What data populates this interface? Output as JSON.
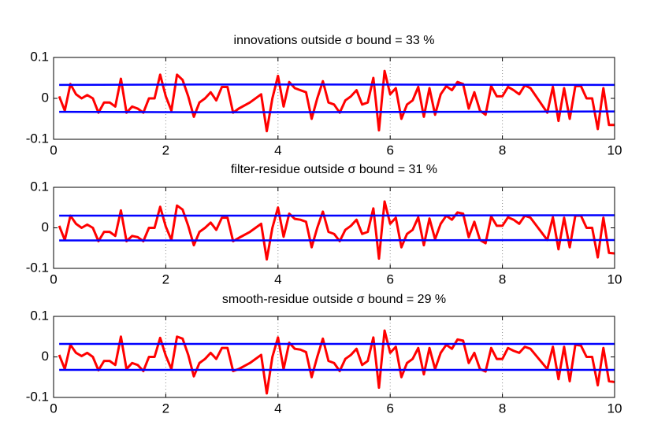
{
  "chart_data": [
    {
      "type": "line",
      "title": "innovations outside σ bound = 33 %",
      "x": [
        0.1,
        0.2,
        0.3,
        0.4,
        0.5,
        0.6,
        0.7,
        0.8,
        0.9,
        1.0,
        1.1,
        1.2,
        1.3,
        1.4,
        1.5,
        1.6,
        1.7,
        1.8,
        1.9,
        2.0,
        2.1,
        2.2,
        2.3,
        2.4,
        2.5,
        2.6,
        2.7,
        2.8,
        2.9,
        3.0,
        3.1,
        3.2,
        3.3,
        3.5,
        3.7,
        3.8,
        3.9,
        4.0,
        4.1,
        4.2,
        4.3,
        4.4,
        4.5,
        4.6,
        4.7,
        4.8,
        4.9,
        5.0,
        5.1,
        5.2,
        5.3,
        5.4,
        5.5,
        5.6,
        5.7,
        5.8,
        5.9,
        6.0,
        6.1,
        6.2,
        6.3,
        6.4,
        6.5,
        6.6,
        6.7,
        6.8,
        6.9,
        7.0,
        7.1,
        7.2,
        7.3,
        7.4,
        7.5,
        7.6,
        7.7,
        7.8,
        7.9,
        8.0,
        8.1,
        8.2,
        8.3,
        8.4,
        8.5,
        8.8,
        8.9,
        9.0,
        9.1,
        9.2,
        9.3,
        9.4,
        9.5,
        9.6,
        9.7,
        9.8,
        9.9,
        10.0
      ],
      "series": [
        {
          "color": "#ff0000",
          "values": [
            0.005,
            -0.03,
            0.035,
            0.01,
            0,
            0.008,
            0,
            -0.035,
            -0.01,
            -0.01,
            -0.02,
            0.048,
            -0.035,
            -0.02,
            -0.025,
            -0.035,
            0,
            0,
            0.058,
            0.005,
            -0.03,
            0.058,
            0.045,
            0.005,
            -0.045,
            -0.01,
            0,
            0.015,
            -0.005,
            0.028,
            0.028,
            -0.035,
            -0.025,
            -0.01,
            0.01,
            -0.08,
            0,
            0.055,
            -0.02,
            0.04,
            0.025,
            0.02,
            0.015,
            -0.05,
            0,
            0.042,
            -0.01,
            -0.015,
            -0.035,
            -0.005,
            0.005,
            0.02,
            -0.015,
            -0.01,
            0.05,
            -0.078,
            0.067,
            0.01,
            0.025,
            -0.05,
            -0.015,
            -0.005,
            0.028,
            -0.045,
            0.025,
            -0.04,
            0.01,
            0.03,
            0.02,
            0.04,
            0.035,
            -0.025,
            0.015,
            -0.03,
            -0.04,
            0.03,
            0.005,
            0.005,
            0.028,
            0.02,
            0.01,
            0.032,
            0.025,
            -0.035,
            0.028,
            -0.055,
            0.025,
            -0.05,
            0.03,
            0.03,
            0,
            0,
            -0.075,
            0.025,
            -0.065,
            -0.065
          ]
        },
        {
          "color": "#0000ff",
          "x": [
            0.1,
            3.0,
            10.0
          ],
          "values": [
            0.033,
            0.034,
            0.033
          ]
        },
        {
          "color": "#0000ff",
          "x": [
            0.1,
            3.0,
            10.0
          ],
          "values": [
            -0.033,
            -0.034,
            -0.032
          ]
        }
      ],
      "xlim": [
        0,
        10
      ],
      "xticks": [
        0,
        2,
        4,
        6,
        8,
        10
      ],
      "ylim": [
        -0.1,
        0.1
      ],
      "yticks": [
        -0.1,
        0,
        0.1
      ],
      "grid": "x"
    },
    {
      "type": "line",
      "title": "filter-residue outside σ bound = 31 %",
      "x": [
        0.1,
        0.2,
        0.3,
        0.4,
        0.5,
        0.6,
        0.7,
        0.8,
        0.9,
        1.0,
        1.1,
        1.2,
        1.3,
        1.4,
        1.5,
        1.6,
        1.7,
        1.8,
        1.9,
        2.0,
        2.1,
        2.2,
        2.3,
        2.4,
        2.5,
        2.6,
        2.7,
        2.8,
        2.9,
        3.0,
        3.1,
        3.2,
        3.3,
        3.5,
        3.7,
        3.8,
        3.9,
        4.0,
        4.1,
        4.2,
        4.3,
        4.4,
        4.5,
        4.6,
        4.7,
        4.8,
        4.9,
        5.0,
        5.1,
        5.2,
        5.3,
        5.4,
        5.5,
        5.6,
        5.7,
        5.8,
        5.9,
        6.0,
        6.1,
        6.2,
        6.3,
        6.4,
        6.5,
        6.6,
        6.7,
        6.8,
        6.9,
        7.0,
        7.1,
        7.2,
        7.3,
        7.4,
        7.5,
        7.6,
        7.7,
        7.8,
        7.9,
        8.0,
        8.1,
        8.2,
        8.3,
        8.4,
        8.5,
        8.8,
        8.9,
        9.0,
        9.1,
        9.2,
        9.3,
        9.4,
        9.5,
        9.6,
        9.7,
        9.8,
        9.9,
        10.0
      ],
      "series": [
        {
          "color": "#ff0000",
          "values": [
            0.005,
            -0.03,
            0.03,
            0.01,
            0,
            0.008,
            0,
            -0.033,
            -0.01,
            -0.01,
            -0.02,
            0.043,
            -0.033,
            -0.02,
            -0.023,
            -0.033,
            0,
            0,
            0.052,
            0.003,
            -0.03,
            0.055,
            0.045,
            0.005,
            -0.043,
            -0.01,
            0,
            0.013,
            -0.005,
            0.025,
            0.025,
            -0.033,
            -0.025,
            -0.01,
            0.01,
            -0.078,
            0,
            0.05,
            -0.022,
            0.035,
            0.022,
            0.02,
            0.015,
            -0.048,
            0,
            0.04,
            -0.01,
            -0.015,
            -0.033,
            -0.005,
            0.005,
            0.02,
            -0.015,
            -0.01,
            0.048,
            -0.076,
            0.065,
            0.01,
            0.025,
            -0.048,
            -0.015,
            -0.005,
            0.026,
            -0.043,
            0.023,
            -0.028,
            0.01,
            0.03,
            0.02,
            0.038,
            0.035,
            -0.023,
            0.015,
            -0.03,
            -0.038,
            0.028,
            0.005,
            0.005,
            0.026,
            0.02,
            0.01,
            0.03,
            0.025,
            -0.03,
            0.026,
            -0.053,
            0.025,
            -0.048,
            0.03,
            0.03,
            0,
            0,
            -0.073,
            0.025,
            -0.062,
            -0.063
          ]
        },
        {
          "color": "#0000ff",
          "x": [
            0.1,
            3.0,
            10.0
          ],
          "values": [
            0.03,
            0.03,
            0.031
          ]
        },
        {
          "color": "#0000ff",
          "x": [
            0.1,
            3.0,
            10.0
          ],
          "values": [
            -0.031,
            -0.031,
            -0.03
          ]
        }
      ],
      "xlim": [
        0,
        10
      ],
      "xticks": [
        0,
        2,
        4,
        6,
        8,
        10
      ],
      "ylim": [
        -0.1,
        0.1
      ],
      "yticks": [
        -0.1,
        0,
        0.1
      ],
      "grid": "x"
    },
    {
      "type": "line",
      "title": "smooth-residue outside σ bound = 29 %",
      "x": [
        0.1,
        0.2,
        0.3,
        0.4,
        0.5,
        0.6,
        0.7,
        0.8,
        0.9,
        1.0,
        1.1,
        1.2,
        1.3,
        1.4,
        1.5,
        1.6,
        1.7,
        1.8,
        1.9,
        2.0,
        2.1,
        2.2,
        2.3,
        2.4,
        2.5,
        2.6,
        2.7,
        2.8,
        2.9,
        3.0,
        3.1,
        3.2,
        3.3,
        3.5,
        3.7,
        3.8,
        3.9,
        4.0,
        4.1,
        4.2,
        4.3,
        4.4,
        4.5,
        4.6,
        4.7,
        4.8,
        4.9,
        5.0,
        5.1,
        5.2,
        5.3,
        5.4,
        5.5,
        5.6,
        5.7,
        5.8,
        5.9,
        6.0,
        6.1,
        6.2,
        6.3,
        6.4,
        6.5,
        6.6,
        6.7,
        6.8,
        6.9,
        7.0,
        7.1,
        7.2,
        7.3,
        7.4,
        7.5,
        7.6,
        7.7,
        7.8,
        7.9,
        8.0,
        8.1,
        8.2,
        8.3,
        8.4,
        8.5,
        8.8,
        8.9,
        9.0,
        9.1,
        9.2,
        9.3,
        9.4,
        9.5,
        9.6,
        9.7,
        9.8,
        9.9,
        10.0
      ],
      "series": [
        {
          "color": "#ff0000",
          "values": [
            0.005,
            -0.03,
            0.03,
            0.01,
            0.002,
            0.01,
            0,
            -0.033,
            -0.01,
            -0.01,
            -0.02,
            0.05,
            -0.03,
            -0.015,
            -0.02,
            -0.035,
            0,
            0,
            0.047,
            0.003,
            -0.03,
            0.05,
            0.045,
            0.005,
            -0.048,
            -0.015,
            -0.005,
            0.01,
            -0.005,
            0.022,
            0.022,
            -0.035,
            -0.03,
            -0.015,
            0.005,
            -0.09,
            0,
            0.048,
            -0.03,
            0.035,
            0.02,
            0.018,
            0.012,
            -0.05,
            0,
            0.045,
            -0.01,
            -0.015,
            -0.035,
            -0.005,
            0.005,
            0.02,
            -0.02,
            -0.01,
            0.048,
            -0.076,
            0.065,
            0.01,
            0.025,
            -0.05,
            -0.015,
            -0.005,
            0.022,
            -0.043,
            0.022,
            -0.03,
            0.01,
            0.03,
            0.02,
            0.043,
            0.04,
            -0.015,
            0.01,
            -0.03,
            -0.036,
            0.022,
            -0.005,
            -0.005,
            0.022,
            0.015,
            0.01,
            0.025,
            0.02,
            -0.03,
            0.025,
            -0.055,
            0.025,
            -0.06,
            0.03,
            0.028,
            0,
            0,
            -0.07,
            0.022,
            -0.06,
            -0.062
          ]
        },
        {
          "color": "#0000ff",
          "x": [
            0.1,
            10.0
          ],
          "values": [
            0.032,
            0.032
          ]
        },
        {
          "color": "#0000ff",
          "x": [
            0.1,
            10.0
          ],
          "values": [
            -0.032,
            -0.032
          ]
        }
      ],
      "xlim": [
        0,
        10
      ],
      "xticks": [
        0,
        2,
        4,
        6,
        8,
        10
      ],
      "ylim": [
        -0.1,
        0.1
      ],
      "yticks": [
        -0.1,
        0,
        0.1
      ],
      "grid": "x"
    }
  ]
}
